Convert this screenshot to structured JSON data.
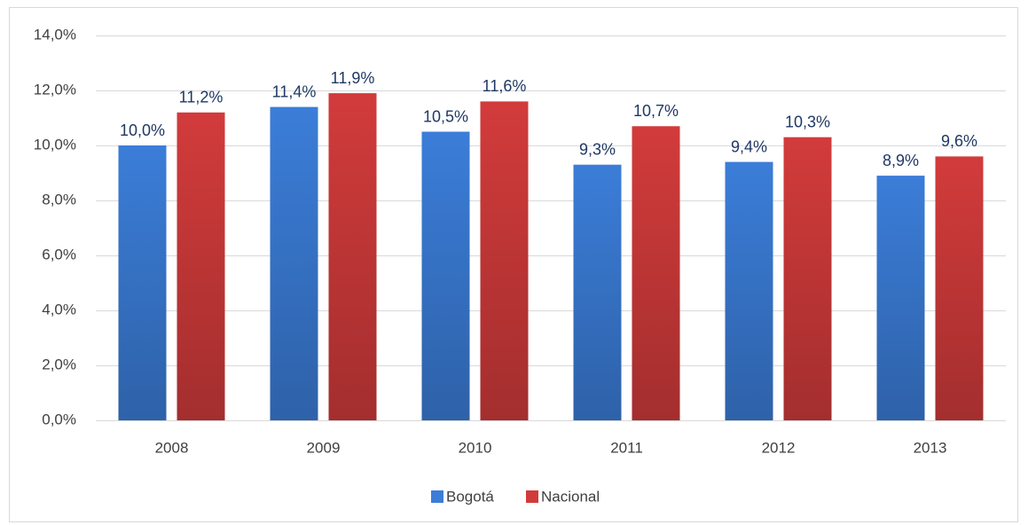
{
  "chart_data": {
    "type": "bar",
    "categories": [
      "2008",
      "2009",
      "2010",
      "2011",
      "2012",
      "2013"
    ],
    "series": [
      {
        "name": "Bogotá",
        "color": "#3b7dd8",
        "values": [
          10.0,
          11.4,
          10.5,
          9.3,
          9.4,
          8.9
        ],
        "value_labels": [
          "10,0%",
          "11,4%",
          "10,5%",
          "9,3%",
          "9,4%",
          "8,9%"
        ]
      },
      {
        "name": "Nacional",
        "color": "#d23b3b",
        "values": [
          11.2,
          11.9,
          11.6,
          10.7,
          10.3,
          9.6
        ],
        "value_labels": [
          "11,2%",
          "11,9%",
          "11,6%",
          "10,7%",
          "10,3%",
          "9,6%"
        ]
      }
    ],
    "ylim": [
      0,
      14
    ],
    "yticks": [
      {
        "value": 0,
        "label": "0,0%"
      },
      {
        "value": 2,
        "label": "2,0%"
      },
      {
        "value": 4,
        "label": "4,0%"
      },
      {
        "value": 6,
        "label": "6,0%"
      },
      {
        "value": 8,
        "label": "8,0%"
      },
      {
        "value": 10,
        "label": "10,0%"
      },
      {
        "value": 12,
        "label": "12,0%"
      },
      {
        "value": 14,
        "label": "14,0%"
      }
    ],
    "grid": true,
    "legend": "bottom"
  }
}
